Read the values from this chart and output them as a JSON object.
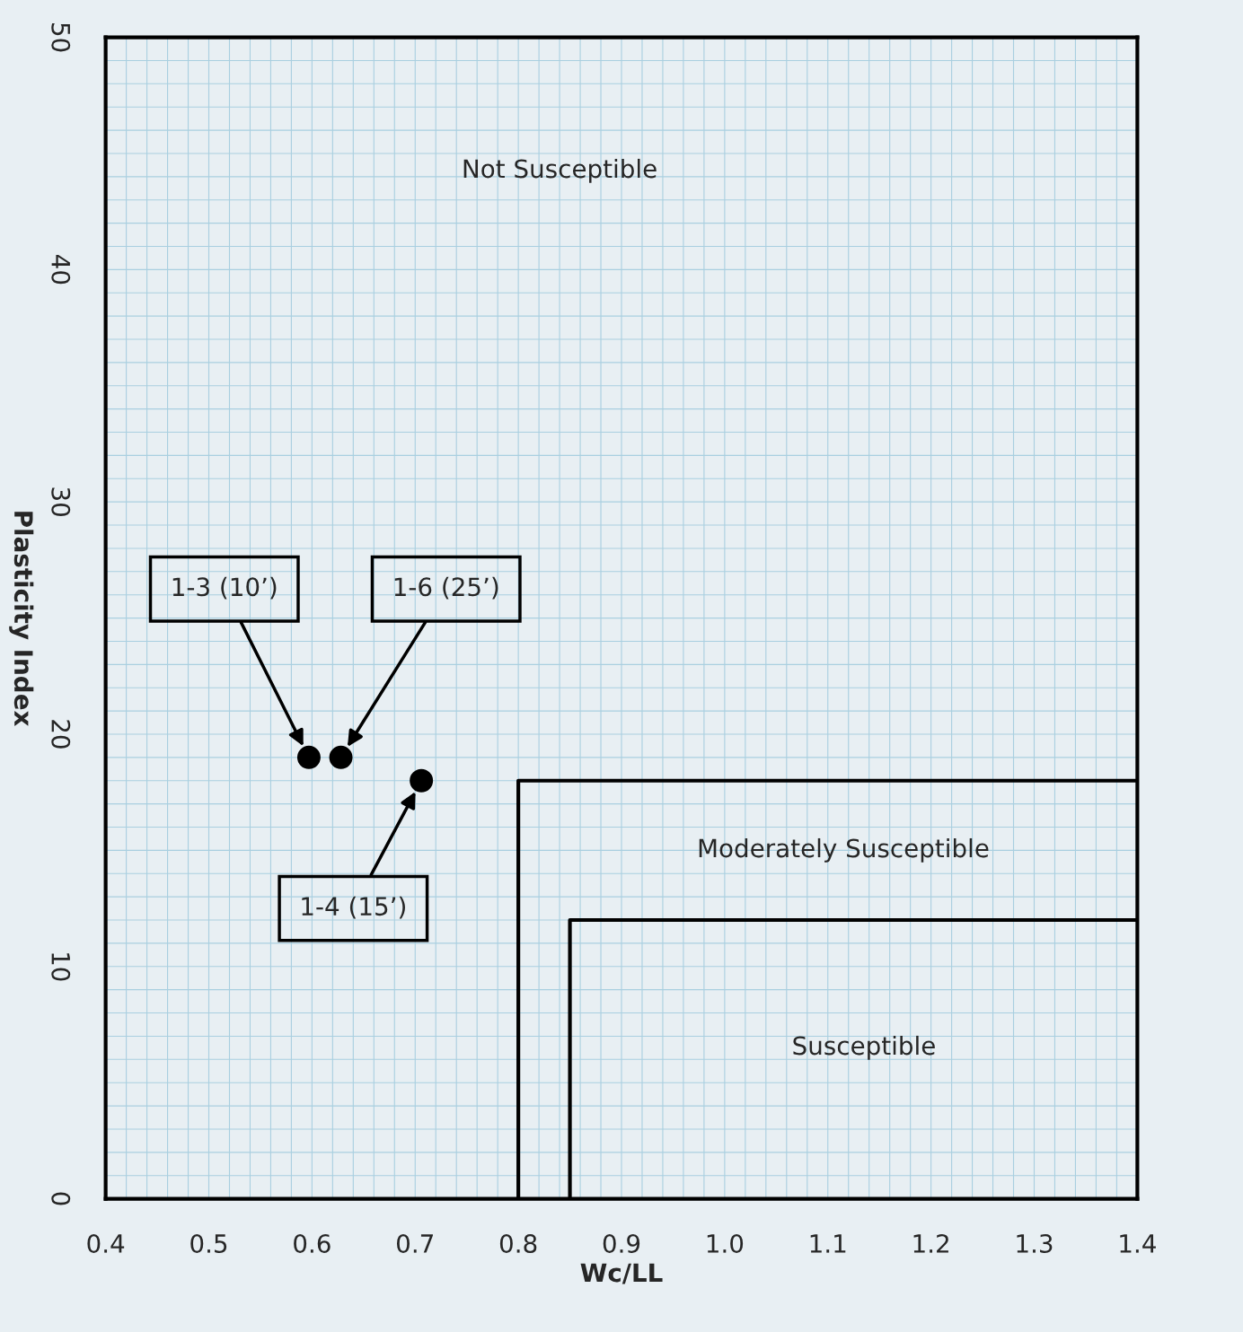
{
  "chart_data": {
    "type": "scatter",
    "xlabel": "Wc/LL",
    "ylabel": "Plasticity Index",
    "xlim": [
      0.4,
      1.4
    ],
    "ylim": [
      0,
      50
    ],
    "xticks": [
      {
        "value": 0.4,
        "label": "0.4"
      },
      {
        "value": 0.5,
        "label": "0.5"
      },
      {
        "value": 0.6,
        "label": "0.6"
      },
      {
        "value": 0.7,
        "label": "0.7"
      },
      {
        "value": 0.8,
        "label": "0.8"
      },
      {
        "value": 0.9,
        "label": "0.9"
      },
      {
        "value": 1.0,
        "label": "1.0"
      },
      {
        "value": 1.1,
        "label": "1.1"
      },
      {
        "value": 1.2,
        "label": "1.2"
      },
      {
        "value": 1.3,
        "label": "1.3"
      },
      {
        "value": 1.4,
        "label": "1.4"
      }
    ],
    "yticks": [
      0,
      10,
      20,
      30,
      40,
      50
    ],
    "grid": true,
    "marker": "circle",
    "series": [
      {
        "color": "#000000",
        "x": [
          0.597,
          0.628,
          0.706
        ],
        "values": [
          19,
          19,
          18
        ]
      },
      {
        "type": "line",
        "color": "#000000",
        "marker": "none",
        "x": [
          0.8,
          0.8,
          1.4
        ],
        "values": [
          0,
          18,
          18
        ]
      },
      {
        "type": "line",
        "color": "#000000",
        "marker": "none",
        "x": [
          0.85,
          0.85,
          1.4
        ],
        "values": [
          0,
          12,
          12
        ]
      }
    ],
    "annotations": [
      "1-3 (10’)",
      "1-6 (25’)",
      "1-4 (15’)",
      "Not Susceptible",
      "Moderately Susceptible",
      "Susceptible"
    ]
  }
}
